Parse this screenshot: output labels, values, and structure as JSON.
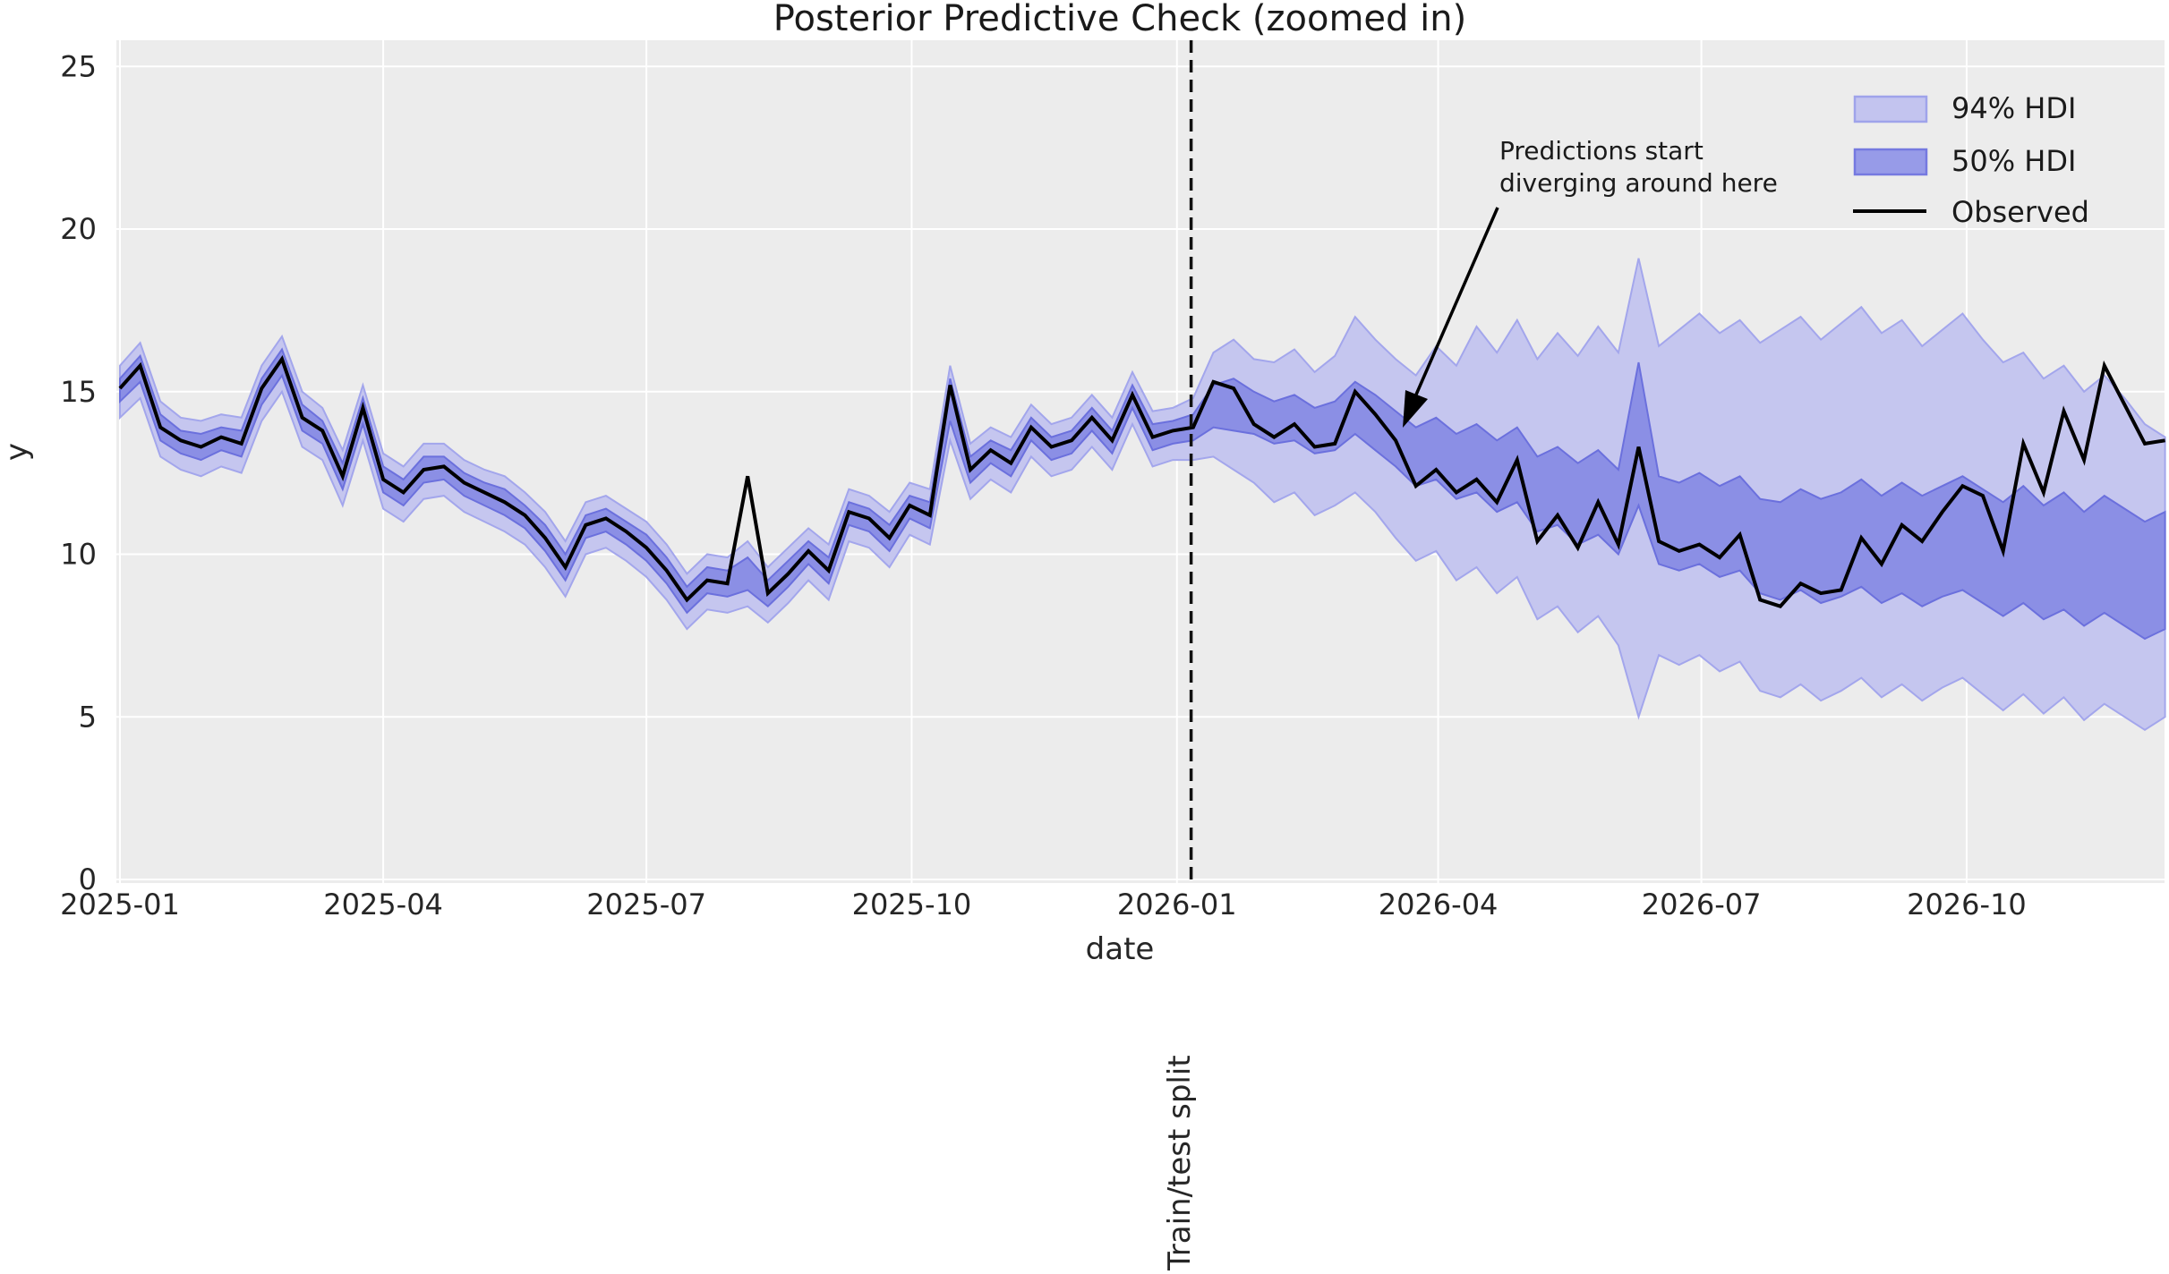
{
  "chart_data": {
    "type": "line",
    "title": "Posterior Predictive Check (zoomed in)",
    "xlabel": "date",
    "ylabel": "y",
    "split_label": "Train/test split",
    "annotation": {
      "line1": "Predictions start",
      "line2": "diverging around here"
    },
    "legend": [
      "94% HDI",
      "50% HDI",
      "Observed"
    ],
    "legend_position": "upper right",
    "grid": true,
    "colors": {
      "axes_background": "#ececec",
      "gridline": "#ffffff",
      "observed": "#000000",
      "hdi94_fill": "#c5c6ef",
      "hdi94_edge": "#a3a6ec",
      "hdi50_fill": "#8b8fe5",
      "hdi50_edge": "#6b70dd",
      "text": "#262626"
    },
    "ylim": [
      0,
      25.9
    ],
    "yticks": [
      0,
      5,
      10,
      15,
      20,
      25
    ],
    "xticks": [
      {
        "label": "2025-01",
        "week": 0
      },
      {
        "label": "2025-04",
        "week": 13.0
      },
      {
        "label": "2025-07",
        "week": 26.0
      },
      {
        "label": "2025-10",
        "week": 39.1
      },
      {
        "label": "2026-01",
        "week": 52.2
      },
      {
        "label": "2026-04",
        "week": 65.1
      },
      {
        "label": "2026-07",
        "week": 78.1
      },
      {
        "label": "2026-10",
        "week": 91.2
      }
    ],
    "x_unit": "weeks from 2025-01",
    "n_points": 102,
    "split_week": 52.9,
    "observed": [
      15.1,
      15.8,
      13.9,
      13.5,
      13.3,
      13.6,
      13.4,
      15.1,
      16.0,
      14.2,
      13.8,
      12.4,
      14.5,
      12.3,
      11.9,
      12.6,
      12.7,
      12.2,
      11.9,
      11.6,
      11.2,
      10.5,
      9.6,
      10.9,
      11.1,
      10.7,
      10.2,
      9.5,
      8.6,
      9.2,
      9.1,
      12.4,
      8.8,
      9.4,
      10.1,
      9.5,
      11.3,
      11.1,
      10.5,
      11.5,
      11.2,
      15.2,
      12.6,
      13.2,
      12.8,
      13.9,
      13.3,
      13.5,
      14.2,
      13.5,
      14.9,
      13.6,
      13.8,
      13.9,
      15.3,
      15.1,
      14.0,
      13.6,
      14.0,
      13.3,
      13.4,
      15.0,
      14.3,
      13.5,
      12.1,
      12.6,
      11.9,
      12.3,
      11.6,
      12.9,
      10.4,
      11.2,
      10.2,
      11.6,
      10.3,
      13.3,
      10.4,
      10.1,
      10.3,
      9.9,
      10.6,
      8.6,
      8.4,
      9.1,
      8.8,
      8.9,
      10.5,
      9.7,
      10.9,
      10.4,
      11.3,
      12.1,
      11.8,
      10.1,
      13.4,
      11.9,
      14.4,
      12.9,
      15.8,
      14.6,
      13.4,
      13.5
    ],
    "hdi50_high": [
      15.4,
      16.1,
      14.3,
      13.8,
      13.7,
      13.9,
      13.8,
      15.4,
      16.3,
      14.6,
      14.1,
      12.8,
      14.8,
      12.7,
      12.3,
      13.0,
      13.0,
      12.5,
      12.2,
      12.0,
      11.5,
      10.9,
      10.0,
      11.2,
      11.4,
      11.0,
      10.6,
      9.9,
      9.0,
      9.6,
      9.5,
      9.9,
      9.2,
      9.8,
      10.4,
      9.9,
      11.6,
      11.4,
      10.9,
      11.8,
      11.6,
      15.4,
      13.0,
      13.5,
      13.2,
      14.2,
      13.6,
      13.8,
      14.5,
      13.8,
      15.2,
      14.0,
      14.1,
      14.3,
      15.2,
      15.4,
      15.0,
      14.7,
      14.9,
      14.5,
      14.7,
      15.3,
      14.9,
      14.4,
      13.9,
      14.2,
      13.7,
      14.0,
      13.5,
      13.9,
      13.0,
      13.3,
      12.8,
      13.2,
      12.6,
      15.9,
      12.4,
      12.2,
      12.5,
      12.1,
      12.4,
      11.7,
      11.6,
      12.0,
      11.7,
      11.9,
      12.3,
      11.8,
      12.2,
      11.8,
      12.1,
      12.4,
      12.0,
      11.6,
      12.1,
      11.5,
      11.9,
      11.3,
      11.8,
      11.4,
      11.0,
      11.3
    ],
    "hdi50_low": [
      14.7,
      15.3,
      13.5,
      13.1,
      12.9,
      13.2,
      13.0,
      14.6,
      15.5,
      13.8,
      13.4,
      12.0,
      14.0,
      11.9,
      11.5,
      12.2,
      12.3,
      11.8,
      11.5,
      11.2,
      10.8,
      10.1,
      9.2,
      10.5,
      10.7,
      10.3,
      9.8,
      9.1,
      8.2,
      8.8,
      8.7,
      8.9,
      8.4,
      9.0,
      9.7,
      9.1,
      10.9,
      10.7,
      10.1,
      11.1,
      10.8,
      14.1,
      12.2,
      12.8,
      12.4,
      13.5,
      12.9,
      13.1,
      13.8,
      13.1,
      14.5,
      13.2,
      13.4,
      13.5,
      13.9,
      13.8,
      13.7,
      13.4,
      13.5,
      13.1,
      13.2,
      13.7,
      13.2,
      12.7,
      12.1,
      12.3,
      11.7,
      11.9,
      11.3,
      11.6,
      10.7,
      10.9,
      10.3,
      10.6,
      10.0,
      11.5,
      9.7,
      9.5,
      9.7,
      9.3,
      9.5,
      8.8,
      8.6,
      8.9,
      8.5,
      8.7,
      9.0,
      8.5,
      8.8,
      8.4,
      8.7,
      8.9,
      8.5,
      8.1,
      8.5,
      8.0,
      8.3,
      7.8,
      8.2,
      7.8,
      7.4,
      7.7
    ],
    "hdi94_high": [
      15.8,
      16.5,
      14.7,
      14.2,
      14.1,
      14.3,
      14.2,
      15.8,
      16.7,
      15.0,
      14.5,
      13.2,
      15.2,
      13.1,
      12.7,
      13.4,
      13.4,
      12.9,
      12.6,
      12.4,
      11.9,
      11.3,
      10.4,
      11.6,
      11.8,
      11.4,
      11.0,
      10.3,
      9.4,
      10.0,
      9.9,
      10.4,
      9.6,
      10.2,
      10.8,
      10.3,
      12.0,
      11.8,
      11.3,
      12.2,
      12.0,
      15.8,
      13.4,
      13.9,
      13.6,
      14.6,
      14.0,
      14.2,
      14.9,
      14.2,
      15.6,
      14.4,
      14.5,
      14.8,
      16.2,
      16.6,
      16.0,
      15.9,
      16.3,
      15.6,
      16.1,
      17.3,
      16.6,
      16.0,
      15.5,
      16.4,
      15.8,
      17.0,
      16.2,
      17.2,
      16.0,
      16.8,
      16.1,
      17.0,
      16.2,
      19.1,
      16.4,
      16.9,
      17.4,
      16.8,
      17.2,
      16.5,
      16.9,
      17.3,
      16.6,
      17.1,
      17.6,
      16.8,
      17.2,
      16.4,
      16.9,
      17.4,
      16.6,
      15.9,
      16.2,
      15.4,
      15.8,
      15.0,
      15.5,
      14.8,
      14.0,
      13.6
    ],
    "hdi94_low": [
      14.2,
      14.8,
      13.0,
      12.6,
      12.4,
      12.7,
      12.5,
      14.1,
      15.0,
      13.3,
      12.9,
      11.5,
      13.5,
      11.4,
      11.0,
      11.7,
      11.8,
      11.3,
      11.0,
      10.7,
      10.3,
      9.6,
      8.7,
      10.0,
      10.2,
      9.8,
      9.3,
      8.6,
      7.7,
      8.3,
      8.2,
      8.4,
      7.9,
      8.5,
      9.2,
      8.6,
      10.4,
      10.2,
      9.6,
      10.6,
      10.3,
      13.5,
      11.7,
      12.3,
      11.9,
      13.0,
      12.4,
      12.6,
      13.3,
      12.6,
      14.0,
      12.7,
      12.9,
      12.9,
      13.0,
      12.6,
      12.2,
      11.6,
      11.9,
      11.2,
      11.5,
      11.9,
      11.3,
      10.5,
      9.8,
      10.1,
      9.2,
      9.6,
      8.8,
      9.3,
      8.0,
      8.4,
      7.6,
      8.1,
      7.2,
      5.0,
      6.9,
      6.6,
      6.9,
      6.4,
      6.7,
      5.8,
      5.6,
      6.0,
      5.5,
      5.8,
      6.2,
      5.6,
      6.0,
      5.5,
      5.9,
      6.2,
      5.7,
      5.2,
      5.7,
      5.1,
      5.6,
      4.9,
      5.4,
      5.0,
      4.6,
      5.0
    ]
  }
}
